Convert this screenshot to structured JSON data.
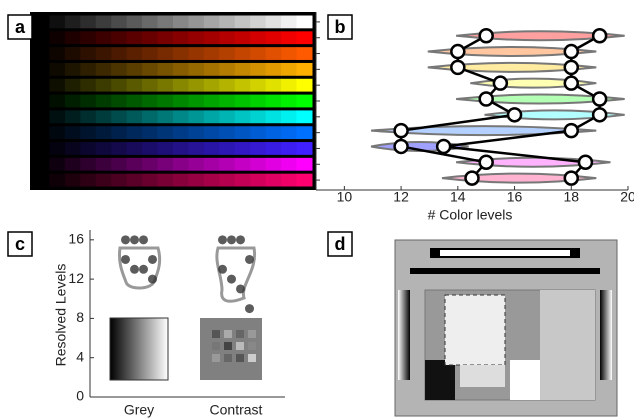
{
  "panel_labels": [
    "a",
    "b",
    "c",
    "d"
  ],
  "gradient_rows": {
    "colors": [
      "#ffffff",
      "#ff0000",
      "#ff5a00",
      "#ffb000",
      "#ffff00",
      "#00ff00",
      "#00ffff",
      "#0070ff",
      "#4020ff",
      "#ff00ff",
      "#ff0070"
    ]
  },
  "chart_data": [
    {
      "type": "dumbbell",
      "xlabel": "# Color levels",
      "xlim": [
        9,
        20
      ],
      "xticks": [
        10,
        12,
        14,
        16,
        18,
        20
      ],
      "series": [
        {
          "color": "#000000",
          "values": [
            15,
            14,
            14,
            15.5,
            15,
            16,
            12,
            12,
            15,
            14.5
          ]
        },
        {
          "color": "#000000",
          "values": [
            19,
            18,
            18,
            18,
            19,
            19,
            18,
            13.5,
            18.5,
            18
          ]
        }
      ],
      "band_colors": [
        "#bbbbbb",
        "#ff6060",
        "#ffa060",
        "#ffe060",
        "#ffff80",
        "#80ff80",
        "#80ffff",
        "#80b0ff",
        "#6060ff",
        "#ff80ff",
        "#ff80b0"
      ]
    },
    {
      "type": "strip",
      "ylabel": "Resolved Levels",
      "categories": [
        "Grey",
        "Contrast"
      ],
      "ylim": [
        0,
        17
      ],
      "yticks": [
        0,
        4,
        8,
        12,
        16
      ],
      "series": [
        {
          "color": "#333333",
          "values": [
            16,
            16,
            16,
            14,
            14,
            13,
            13,
            12
          ]
        },
        {
          "color": "#333333",
          "values": [
            16,
            16,
            16,
            14,
            13,
            12,
            11,
            9
          ]
        }
      ]
    }
  ]
}
